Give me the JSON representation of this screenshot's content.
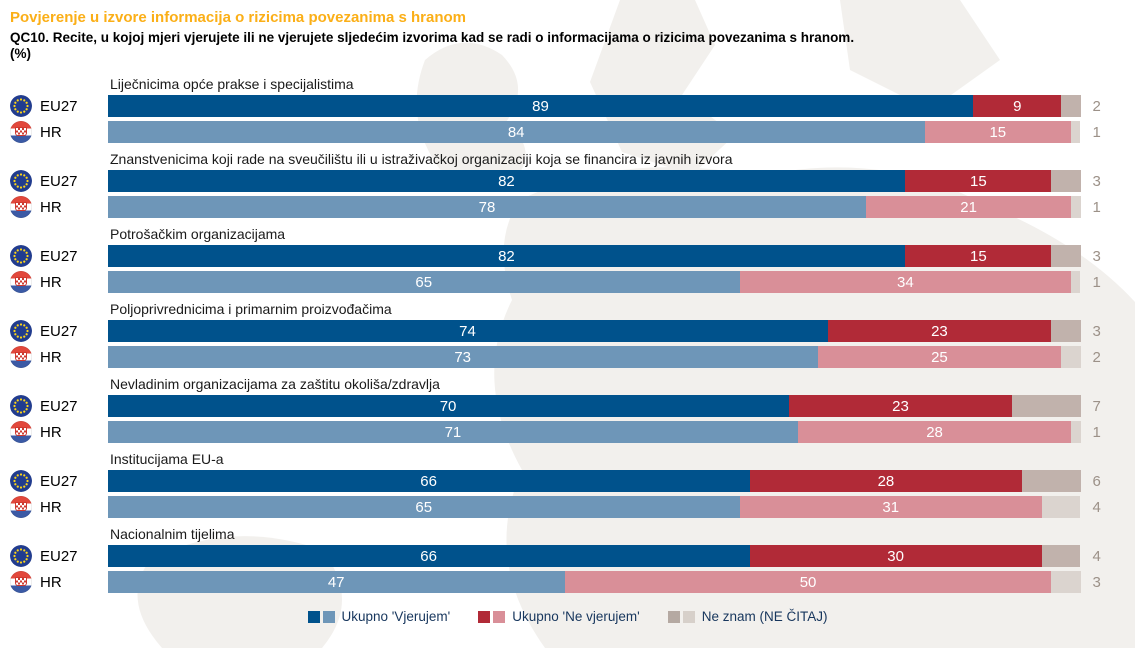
{
  "header": {
    "title": "Povjerenje u izvore informacija o rizicima povezanima s hranom",
    "question": "QC10. Recite, u kojoj mjeri vjerujete ili ne vjerujete sljedećim izvorima kad se radi o informacijama o rizicima povezanima s hranom.",
    "unit": "(%)"
  },
  "colors": {
    "title": "#FBAF17",
    "legend_text": "#17365D",
    "outside_value": "#9C9188",
    "bar_text": "#FFFFFF",
    "category_text": "#1A1A1A",
    "map_fill": "#F2F0ED"
  },
  "legend": {
    "items": [
      {
        "label": "Ukupno 'Vjerujem'",
        "dark": "#00528C",
        "light": "#6E96B8"
      },
      {
        "label": "Ukupno 'Ne vjerujem'",
        "dark": "#B12A37",
        "light": "#D98F98"
      },
      {
        "label": "Ne znam (NE ČITAJ)",
        "dark": "#B5A9A2",
        "light": "#D7D0CA"
      }
    ]
  },
  "chart_data": {
    "type": "bar",
    "orientation": "horizontal",
    "stacked": true,
    "x_range": [
      0,
      100
    ],
    "series_names": [
      "Ukupno 'Vjerujem'",
      "Ukupno 'Ne vjerujem'",
      "Ne znam (NE ČITAJ)"
    ],
    "series_colors": {
      "EU27": [
        "#00528C",
        "#B12A37",
        "#C1B2AC"
      ],
      "HR": [
        "#6E96B8",
        "#D98F98",
        "#DBD4CF"
      ]
    },
    "groups": [
      {
        "category": "Liječnicima opće prakse i specijalistima",
        "rows": [
          {
            "label": "EU27",
            "values": [
              89,
              9,
              2
            ]
          },
          {
            "label": "HR",
            "values": [
              84,
              15,
              1
            ]
          }
        ]
      },
      {
        "category": "Znanstvenicima koji rade na sveučilištu ili u istraživačkoj organizaciji koja se financira iz javnih izvora",
        "rows": [
          {
            "label": "EU27",
            "values": [
              82,
              15,
              3
            ]
          },
          {
            "label": "HR",
            "values": [
              78,
              21,
              1
            ]
          }
        ]
      },
      {
        "category": "Potrošačkim organizacijama",
        "rows": [
          {
            "label": "EU27",
            "values": [
              82,
              15,
              3
            ]
          },
          {
            "label": "HR",
            "values": [
              65,
              34,
              1
            ]
          }
        ]
      },
      {
        "category": "Poljoprivrednicima i primarnim proizvođačima",
        "rows": [
          {
            "label": "EU27",
            "values": [
              74,
              23,
              3
            ]
          },
          {
            "label": "HR",
            "values": [
              73,
              25,
              2
            ]
          }
        ]
      },
      {
        "category": "Nevladinim organizacijama za zaštitu okoliša/zdravlja",
        "rows": [
          {
            "label": "EU27",
            "values": [
              70,
              23,
              7
            ]
          },
          {
            "label": "HR",
            "values": [
              71,
              28,
              1
            ]
          }
        ]
      },
      {
        "category": "Institucijama EU-a",
        "rows": [
          {
            "label": "EU27",
            "values": [
              66,
              28,
              6
            ]
          },
          {
            "label": "HR",
            "values": [
              65,
              31,
              4
            ]
          }
        ]
      },
      {
        "category": "Nacionalnim tijelima",
        "rows": [
          {
            "label": "EU27",
            "values": [
              66,
              30,
              4
            ]
          },
          {
            "label": "HR",
            "values": [
              47,
              50,
              3
            ]
          }
        ]
      }
    ]
  }
}
